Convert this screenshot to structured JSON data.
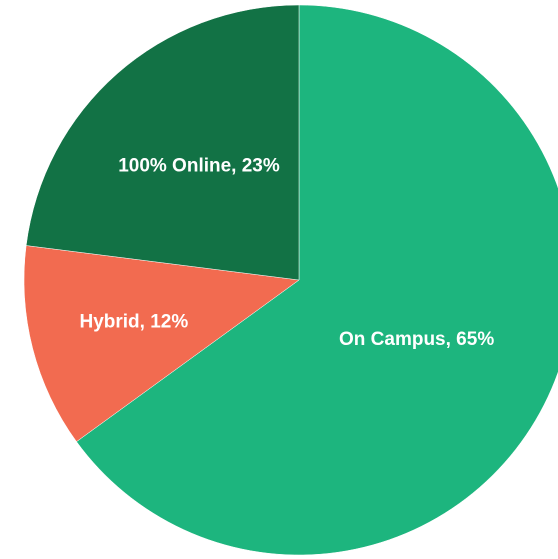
{
  "chart_data": {
    "type": "pie",
    "values": [
      65,
      12,
      23
    ],
    "value_labels": [
      "On Campus, 65%",
      "Hybrid, 12%",
      "100% Online, 23%"
    ],
    "colors": [
      "#1db57e",
      "#f26b50",
      "#127245"
    ]
  }
}
